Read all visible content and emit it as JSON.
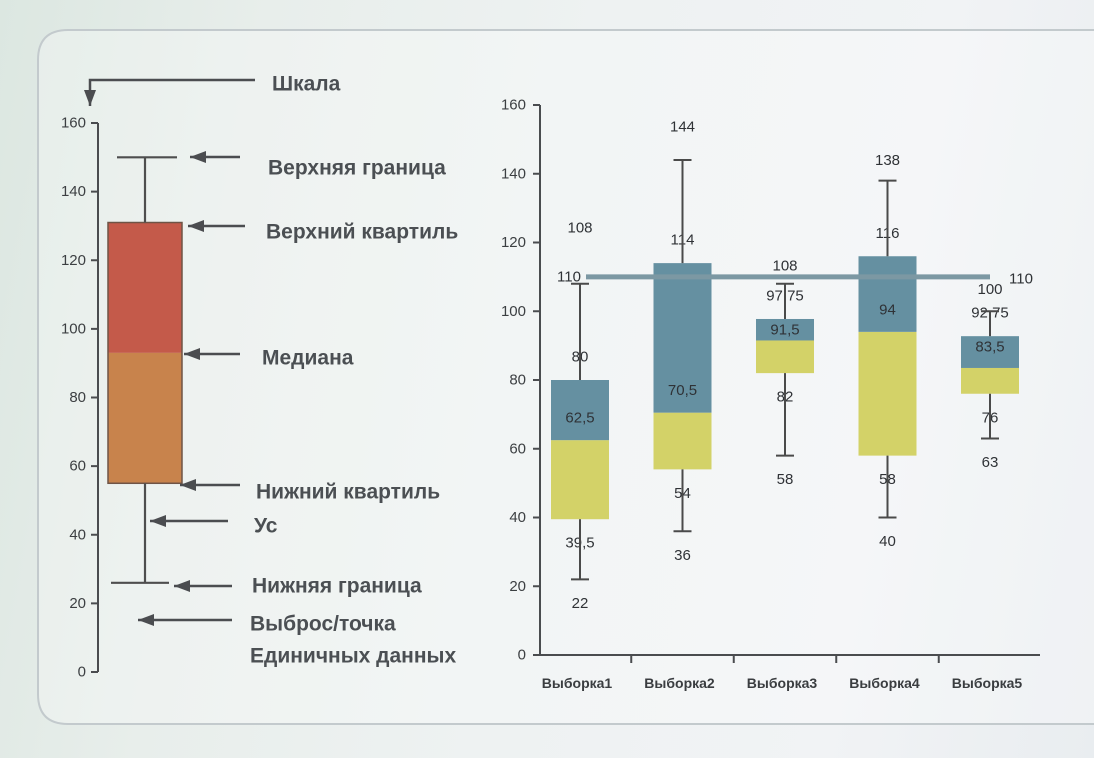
{
  "chart_data": [
    {
      "type": "boxplot",
      "ylim": [
        0,
        160
      ],
      "yticks": [
        "0",
        "20",
        "40",
        "60",
        "80",
        "100",
        "120",
        "140",
        "160"
      ],
      "upper_bound": 150,
      "upper_quartile": 131,
      "median": 93,
      "lower_quartile": 55,
      "lower_bound": 26,
      "annotations": {
        "scale": "Шкала",
        "upper_bound": "Верхняя граница",
        "upper_quartile": "Верхний квартиль",
        "median": "Медиана",
        "lower_quartile": "Нижний квартиль",
        "whisker": "Ус",
        "lower_bound": "Нижняя граница",
        "outlier_line1": "Выброс/точка",
        "outlier_line2": "Единичных данных"
      },
      "colors": {
        "upper_box": "#c45a4a",
        "lower_box": "#c8834c",
        "outline": "#6e5446",
        "whisker": "#4e4e4e"
      }
    },
    {
      "type": "boxplot",
      "ylim": [
        0,
        160
      ],
      "yticks": [
        "0",
        "20",
        "40",
        "60",
        "80",
        "100",
        "120",
        "140",
        "160"
      ],
      "categories": [
        "Выборка1",
        "Выборка2",
        "Выборка3",
        "Выборка4",
        "Выборка5"
      ],
      "min": [
        22,
        36,
        58,
        40,
        63
      ],
      "q1": [
        39.5,
        54,
        82,
        58,
        76
      ],
      "median": [
        62.5,
        70.5,
        91.5,
        94,
        83.5
      ],
      "q3": [
        80,
        114,
        97.75,
        116,
        92.75
      ],
      "max": [
        108,
        144,
        108,
        138,
        100
      ],
      "labels": {
        "max": [
          "108",
          "144",
          "108",
          "138",
          "100"
        ],
        "q3": [
          "80",
          "114",
          "97,75",
          "116",
          "92,75"
        ],
        "median": [
          "62,5",
          "70,5",
          "91,5",
          "94",
          "83,5"
        ],
        "q1": [
          "39,5",
          "54",
          "82",
          "58",
          "76"
        ],
        "min": [
          "22",
          "36",
          "58",
          "40",
          "63"
        ]
      },
      "reference_line": {
        "value": 110,
        "labels": [
          "110",
          "110"
        ]
      },
      "colors": {
        "upper_box": "#6590a1",
        "lower_box": "#d3d268",
        "whisker": "#4a4a4a",
        "reference_line": "#7c98a3"
      }
    }
  ]
}
